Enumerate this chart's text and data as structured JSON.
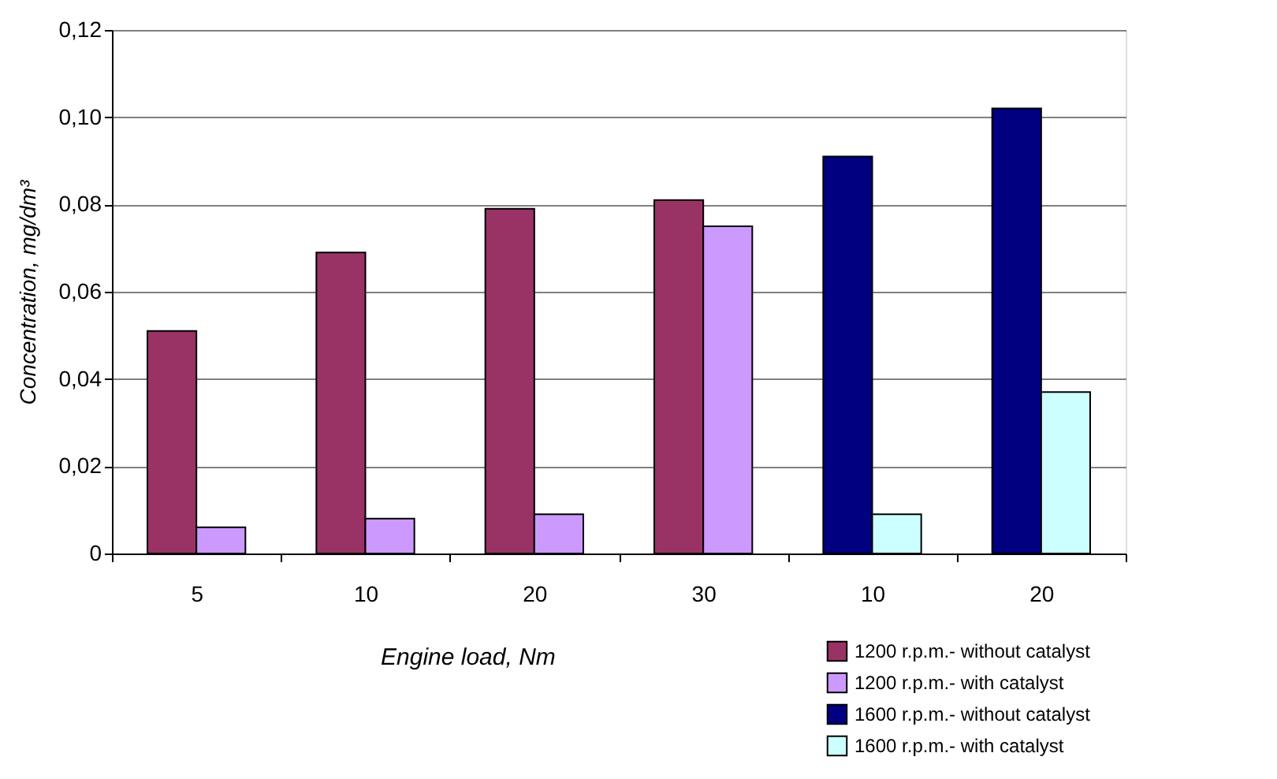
{
  "chart_data": {
    "type": "bar",
    "categories": [
      "5",
      "10",
      "20",
      "30",
      "10",
      "20"
    ],
    "series": [
      {
        "name": "1200 r.p.m.- without catalyst",
        "color": "#993366",
        "values": [
          0.051,
          0.069,
          0.079,
          0.081,
          null,
          null
        ]
      },
      {
        "name": "1200 r.p.m.- with catalyst",
        "color": "#cc99ff",
        "values": [
          0.006,
          0.008,
          0.009,
          0.075,
          null,
          null
        ]
      },
      {
        "name": "1600 r.p.m.- without catalyst",
        "color": "#000080",
        "values": [
          null,
          null,
          null,
          null,
          0.091,
          0.102
        ]
      },
      {
        "name": "1600 r.p.m.- with catalyst",
        "color": "#ccffff",
        "values": [
          null,
          null,
          null,
          null,
          0.009,
          0.037
        ]
      }
    ],
    "xlabel": "Engine load, Nm",
    "ylabel": "Concentration, mg/dm³",
    "ylim": [
      0,
      0.12
    ],
    "yticks": [
      0,
      {
        "value": 0.02,
        "label": "0,02"
      },
      {
        "value": 0.04,
        "label": "0,04"
      },
      {
        "value": 0.06,
        "label": "0,06"
      },
      {
        "value": 0.08,
        "label": "0,08"
      },
      {
        "value": 0.1,
        "label": "0,10"
      },
      {
        "value": 0.12,
        "label": "0,12"
      }
    ],
    "grid": "y",
    "legend": "bottom right"
  }
}
